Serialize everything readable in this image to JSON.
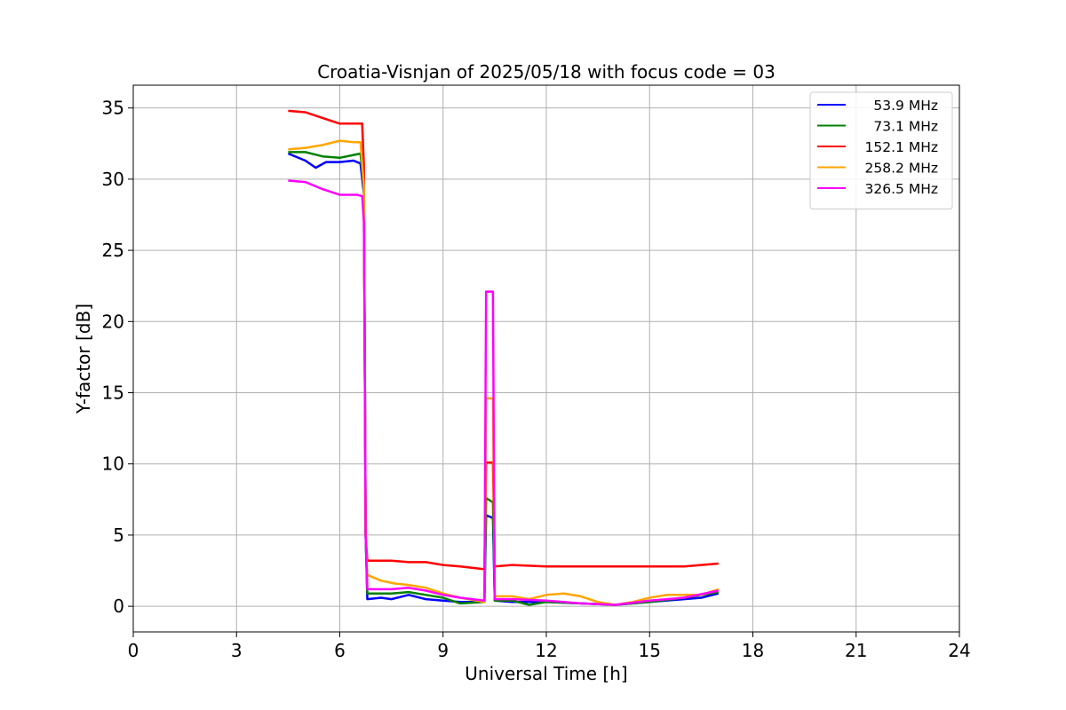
{
  "chart_data": {
    "type": "line",
    "title": "Croatia-Visnjan of 2025/05/18 with focus code = 03",
    "xlabel": "Universal Time [h]",
    "ylabel": "Y-factor [dB]",
    "xlim": [
      0,
      24
    ],
    "ylim": [
      -1.8,
      36.6
    ],
    "xticks": [
      0,
      3,
      6,
      9,
      12,
      15,
      18,
      21,
      24
    ],
    "yticks": [
      0,
      5,
      10,
      15,
      20,
      25,
      30,
      35
    ],
    "grid": true,
    "legend_position": "top-right",
    "series": [
      {
        "name": "53.9 MHz",
        "color": "#0000ff",
        "points": [
          [
            4.5,
            31.8
          ],
          [
            5.0,
            31.3
          ],
          [
            5.3,
            30.8
          ],
          [
            5.6,
            31.2
          ],
          [
            6.0,
            31.2
          ],
          [
            6.4,
            31.3
          ],
          [
            6.6,
            31.1
          ],
          [
            6.7,
            29.0
          ],
          [
            6.72,
            20.0
          ],
          [
            6.75,
            5.0
          ],
          [
            6.8,
            0.5
          ],
          [
            7.2,
            0.6
          ],
          [
            7.5,
            0.5
          ],
          [
            8.0,
            0.8
          ],
          [
            8.5,
            0.5
          ],
          [
            9.0,
            0.4
          ],
          [
            9.5,
            0.3
          ],
          [
            10.2,
            0.3
          ],
          [
            10.25,
            6.4
          ],
          [
            10.45,
            6.2
          ],
          [
            10.5,
            0.4
          ],
          [
            11.0,
            0.3
          ],
          [
            12.0,
            0.3
          ],
          [
            13.0,
            0.2
          ],
          [
            14.0,
            0.1
          ],
          [
            15.0,
            0.3
          ],
          [
            16.0,
            0.5
          ],
          [
            16.5,
            0.6
          ],
          [
            17.0,
            0.9
          ]
        ]
      },
      {
        "name": "73.1 MHz",
        "color": "#008000",
        "points": [
          [
            4.5,
            31.9
          ],
          [
            5.0,
            31.9
          ],
          [
            5.5,
            31.6
          ],
          [
            6.0,
            31.5
          ],
          [
            6.4,
            31.7
          ],
          [
            6.6,
            31.8
          ],
          [
            6.7,
            29.5
          ],
          [
            6.72,
            20.0
          ],
          [
            6.75,
            5.0
          ],
          [
            6.8,
            0.9
          ],
          [
            7.5,
            0.9
          ],
          [
            8.0,
            1.0
          ],
          [
            8.5,
            0.8
          ],
          [
            9.0,
            0.6
          ],
          [
            9.5,
            0.2
          ],
          [
            10.2,
            0.3
          ],
          [
            10.25,
            7.6
          ],
          [
            10.45,
            7.3
          ],
          [
            10.5,
            0.4
          ],
          [
            11.0,
            0.4
          ],
          [
            11.5,
            0.1
          ],
          [
            12.0,
            0.3
          ],
          [
            13.0,
            0.2
          ],
          [
            14.0,
            0.1
          ],
          [
            15.0,
            0.3
          ],
          [
            16.0,
            0.6
          ],
          [
            17.0,
            1.0
          ]
        ]
      },
      {
        "name": "152.1 MHz",
        "color": "#ff0000",
        "points": [
          [
            4.5,
            34.8
          ],
          [
            5.0,
            34.7
          ],
          [
            5.5,
            34.3
          ],
          [
            6.0,
            33.9
          ],
          [
            6.5,
            33.9
          ],
          [
            6.65,
            33.9
          ],
          [
            6.7,
            31.0
          ],
          [
            6.72,
            20.0
          ],
          [
            6.75,
            5.0
          ],
          [
            6.8,
            3.2
          ],
          [
            7.5,
            3.2
          ],
          [
            8.0,
            3.1
          ],
          [
            8.5,
            3.1
          ],
          [
            9.0,
            2.9
          ],
          [
            9.5,
            2.8
          ],
          [
            10.2,
            2.6
          ],
          [
            10.25,
            10.1
          ],
          [
            10.45,
            10.1
          ],
          [
            10.5,
            2.8
          ],
          [
            11.0,
            2.9
          ],
          [
            12.0,
            2.8
          ],
          [
            13.0,
            2.8
          ],
          [
            14.0,
            2.8
          ],
          [
            15.0,
            2.8
          ],
          [
            16.0,
            2.8
          ],
          [
            17.0,
            3.0
          ]
        ]
      },
      {
        "name": "258.2 MHz",
        "color": "#ffa500",
        "points": [
          [
            4.5,
            32.1
          ],
          [
            5.0,
            32.2
          ],
          [
            5.5,
            32.4
          ],
          [
            6.0,
            32.7
          ],
          [
            6.4,
            32.6
          ],
          [
            6.6,
            32.6
          ],
          [
            6.7,
            29.5
          ],
          [
            6.72,
            20.0
          ],
          [
            6.75,
            5.0
          ],
          [
            6.8,
            2.2
          ],
          [
            7.2,
            1.8
          ],
          [
            7.6,
            1.6
          ],
          [
            8.0,
            1.5
          ],
          [
            8.5,
            1.3
          ],
          [
            9.0,
            0.9
          ],
          [
            9.5,
            0.6
          ],
          [
            10.2,
            0.3
          ],
          [
            10.25,
            14.6
          ],
          [
            10.45,
            14.6
          ],
          [
            10.5,
            0.7
          ],
          [
            11.0,
            0.7
          ],
          [
            11.5,
            0.5
          ],
          [
            12.0,
            0.8
          ],
          [
            12.5,
            0.9
          ],
          [
            13.0,
            0.7
          ],
          [
            13.5,
            0.3
          ],
          [
            14.0,
            0.1
          ],
          [
            14.5,
            0.3
          ],
          [
            15.0,
            0.6
          ],
          [
            15.5,
            0.8
          ],
          [
            16.0,
            0.8
          ],
          [
            16.5,
            0.8
          ],
          [
            17.0,
            1.2
          ]
        ]
      },
      {
        "name": "326.5 MHz",
        "color": "#ff00ff",
        "points": [
          [
            4.5,
            29.9
          ],
          [
            5.0,
            29.8
          ],
          [
            5.5,
            29.3
          ],
          [
            6.0,
            28.9
          ],
          [
            6.5,
            28.9
          ],
          [
            6.65,
            28.8
          ],
          [
            6.7,
            27.0
          ],
          [
            6.72,
            20.0
          ],
          [
            6.75,
            5.0
          ],
          [
            6.8,
            1.2
          ],
          [
            7.5,
            1.2
          ],
          [
            8.0,
            1.3
          ],
          [
            8.5,
            1.1
          ],
          [
            9.0,
            0.8
          ],
          [
            9.5,
            0.6
          ],
          [
            10.2,
            0.4
          ],
          [
            10.25,
            22.1
          ],
          [
            10.45,
            22.1
          ],
          [
            10.5,
            0.5
          ],
          [
            11.0,
            0.5
          ],
          [
            12.0,
            0.4
          ],
          [
            13.0,
            0.2
          ],
          [
            14.0,
            0.1
          ],
          [
            15.0,
            0.4
          ],
          [
            16.0,
            0.6
          ],
          [
            17.0,
            1.1
          ]
        ]
      }
    ]
  }
}
